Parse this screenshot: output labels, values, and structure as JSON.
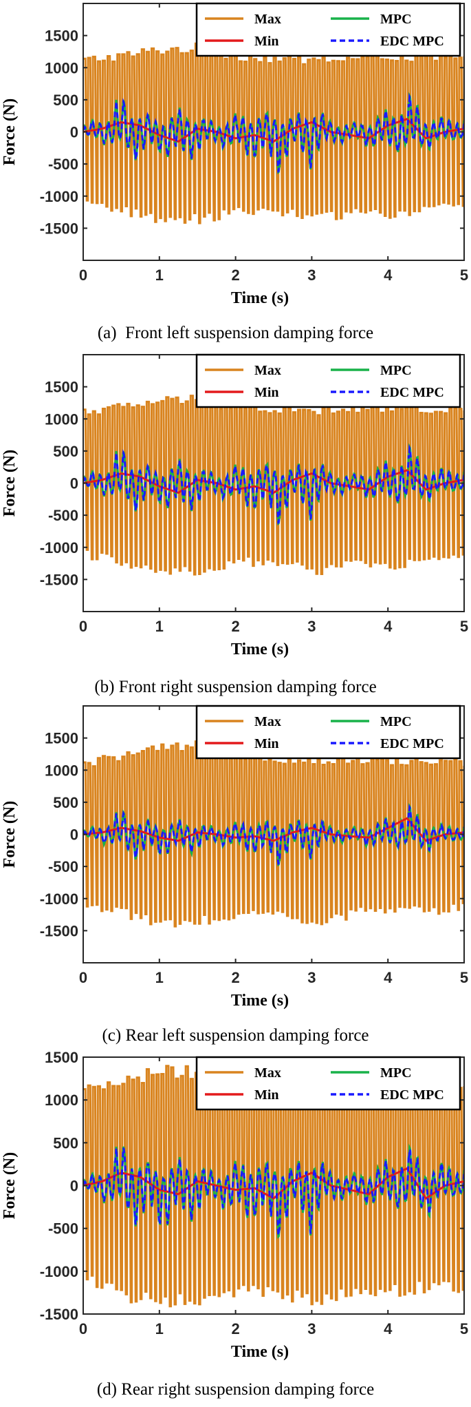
{
  "figure": {
    "captions": [
      "(a)  Front left suspension damping force",
      "(b) Front right suspension damping force",
      "(c) Rear left suspension damping force",
      "(d) Rear right suspension damping force"
    ]
  },
  "chart_data": [
    {
      "type": "line",
      "panel": "a",
      "caption": "(a)  Front left suspension damping force",
      "xlabel": "Time (s)",
      "ylabel": "Force (N)",
      "xlim": [
        0,
        5
      ],
      "ylim": [
        -2000,
        2000
      ],
      "xticks": [
        0,
        1,
        2,
        3,
        4,
        5
      ],
      "yticks": [
        -1500,
        -1000,
        -500,
        0,
        500,
        1000,
        1500
      ],
      "grid": false,
      "legend_position": "top-right",
      "legend": [
        "Max",
        "Min",
        "MPC",
        "EDC MPC"
      ],
      "colors": {
        "Max": "#d9841f",
        "Min": "#e31a1c",
        "MPC": "#19b24a",
        "EDC MPC": "#1a1aff"
      },
      "series": [
        {
          "name": "Max",
          "style": "solid",
          "description_x": [
            0,
            0.5,
            1,
            1.5,
            2,
            2.5,
            3,
            3.5,
            4,
            4.5,
            5
          ],
          "envelope_upper": [
            1180,
            1250,
            1350,
            1380,
            1250,
            1200,
            1180,
            1200,
            1250,
            1220,
            1200
          ],
          "envelope_lower": [
            -1180,
            -1300,
            -1450,
            -1420,
            -1300,
            -1280,
            -1450,
            -1300,
            -1350,
            -1250,
            -1200
          ]
        },
        {
          "name": "Min",
          "style": "solid",
          "x": [
            0,
            0.25,
            0.5,
            0.75,
            1,
            1.25,
            1.5,
            1.75,
            2,
            2.25,
            2.5,
            2.75,
            3,
            3.25,
            3.5,
            3.75,
            4,
            4.25,
            4.5,
            4.75,
            5
          ],
          "y": [
            0,
            50,
            150,
            100,
            -50,
            -150,
            50,
            0,
            -100,
            -50,
            -150,
            50,
            150,
            0,
            -50,
            -100,
            100,
            200,
            -100,
            0,
            50
          ]
        },
        {
          "name": "MPC",
          "style": "solid",
          "envelope_upper": [
            100,
            300,
            650,
            400,
            200,
            400,
            300,
            150,
            300,
            350,
            300,
            250,
            500,
            200,
            150,
            200,
            400,
            700,
            300,
            250,
            450
          ],
          "envelope_lower": [
            -100,
            -200,
            -300,
            -500,
            -400,
            -600,
            -400,
            -200,
            -400,
            -500,
            -800,
            -400,
            -600,
            -200,
            -200,
            -250,
            -400,
            -300,
            -300,
            -200,
            -100
          ]
        },
        {
          "name": "EDC MPC",
          "style": "dashed",
          "envelope_upper": [
            80,
            280,
            620,
            380,
            180,
            380,
            280,
            130,
            280,
            330,
            280,
            230,
            480,
            180,
            130,
            180,
            380,
            680,
            280,
            230,
            430
          ],
          "envelope_lower": [
            -80,
            -180,
            -280,
            -480,
            -380,
            -580,
            -380,
            -180,
            -380,
            -480,
            -780,
            -380,
            -580,
            -180,
            -180,
            -230,
            -380,
            -280,
            -280,
            -180,
            -80
          ]
        }
      ]
    },
    {
      "type": "line",
      "panel": "b",
      "caption": "(b) Front right suspension damping force",
      "xlabel": "Time (s)",
      "ylabel": "Force (N)",
      "xlim": [
        0,
        5
      ],
      "ylim": [
        -2000,
        2000
      ],
      "xticks": [
        0,
        1,
        2,
        3,
        4,
        5
      ],
      "yticks": [
        -1500,
        -1000,
        -500,
        0,
        500,
        1000,
        1500
      ],
      "grid": false,
      "legend_position": "top-right",
      "legend": [
        "Max",
        "Min",
        "MPC",
        "EDC MPC"
      ],
      "colors": {
        "Max": "#d9841f",
        "Min": "#e31a1c",
        "MPC": "#19b24a",
        "EDC MPC": "#1a1aff"
      },
      "series": [
        {
          "name": "Max",
          "style": "solid",
          "envelope_upper": [
            1180,
            1250,
            1350,
            1380,
            1250,
            1200,
            1180,
            1200,
            1250,
            1220,
            1200
          ],
          "envelope_lower": [
            -1180,
            -1300,
            -1450,
            -1420,
            -1300,
            -1280,
            -1450,
            -1300,
            -1350,
            -1250,
            -1200
          ]
        },
        {
          "name": "Min",
          "style": "solid",
          "x": [
            0,
            0.25,
            0.5,
            0.75,
            1,
            1.25,
            1.5,
            1.75,
            2,
            2.25,
            2.5,
            2.75,
            3,
            3.25,
            3.5,
            3.75,
            4,
            4.25,
            4.5,
            4.75,
            5
          ],
          "y": [
            0,
            50,
            150,
            100,
            -50,
            -150,
            50,
            0,
            -100,
            -50,
            -150,
            50,
            150,
            0,
            -50,
            -100,
            100,
            200,
            -100,
            0,
            50
          ]
        },
        {
          "name": "MPC",
          "style": "solid",
          "envelope_upper": [
            100,
            300,
            650,
            400,
            200,
            400,
            300,
            150,
            300,
            350,
            300,
            250,
            500,
            200,
            150,
            200,
            400,
            700,
            300,
            250,
            450
          ],
          "envelope_lower": [
            -100,
            -200,
            -300,
            -500,
            -400,
            -600,
            -400,
            -200,
            -400,
            -500,
            -800,
            -400,
            -600,
            -200,
            -200,
            -250,
            -400,
            -300,
            -300,
            -200,
            -100
          ]
        },
        {
          "name": "EDC MPC",
          "style": "dashed",
          "envelope_upper": [
            80,
            280,
            620,
            380,
            180,
            380,
            280,
            130,
            280,
            330,
            280,
            230,
            480,
            180,
            130,
            180,
            380,
            680,
            280,
            230,
            430
          ],
          "envelope_lower": [
            -80,
            -180,
            -280,
            -480,
            -380,
            -580,
            -380,
            -180,
            -380,
            -480,
            -780,
            -380,
            -580,
            -180,
            -180,
            -230,
            -380,
            -280,
            -280,
            -180,
            -80
          ]
        }
      ]
    },
    {
      "type": "line",
      "panel": "c",
      "caption": "(c) Rear left suspension damping force",
      "xlabel": "Time (s)",
      "ylabel": "Force (N)",
      "xlim": [
        0,
        5
      ],
      "ylim": [
        -2000,
        2000
      ],
      "xticks": [
        0,
        1,
        2,
        3,
        4,
        5
      ],
      "yticks": [
        -1500,
        -1000,
        -500,
        0,
        500,
        1000,
        1500
      ],
      "grid": false,
      "legend_position": "top-right",
      "legend": [
        "Max",
        "Min",
        "MPC",
        "EDC MPC"
      ],
      "colors": {
        "Max": "#d9841f",
        "Min": "#e31a1c",
        "MPC": "#19b24a",
        "EDC MPC": "#1a1aff"
      },
      "series": [
        {
          "name": "Max",
          "style": "solid",
          "envelope_upper": [
            1150,
            1300,
            1400,
            1450,
            1350,
            1250,
            1200,
            1250,
            1200,
            1200,
            1180
          ],
          "envelope_lower": [
            -1150,
            -1300,
            -1450,
            -1400,
            -1350,
            -1300,
            -1450,
            -1300,
            -1200,
            -1250,
            -1200
          ]
        },
        {
          "name": "Min",
          "style": "solid",
          "x": [
            0,
            0.25,
            0.5,
            0.75,
            1,
            1.25,
            1.5,
            1.75,
            2,
            2.25,
            2.5,
            2.75,
            3,
            3.25,
            3.5,
            3.75,
            4,
            4.25,
            4.5,
            4.75,
            5
          ],
          "y": [
            0,
            30,
            100,
            50,
            -50,
            -100,
            30,
            0,
            -50,
            -30,
            -100,
            30,
            100,
            0,
            -30,
            -50,
            100,
            250,
            -100,
            0,
            30
          ]
        },
        {
          "name": "MPC",
          "style": "solid",
          "envelope_upper": [
            60,
            200,
            450,
            300,
            150,
            250,
            200,
            120,
            200,
            250,
            200,
            200,
            350,
            150,
            120,
            150,
            300,
            550,
            200,
            150,
            300
          ],
          "envelope_lower": [
            -60,
            -150,
            -250,
            -450,
            -400,
            -350,
            -300,
            -150,
            -300,
            -350,
            -600,
            -300,
            -400,
            -150,
            -150,
            -200,
            -250,
            -200,
            -300,
            -150,
            -100
          ]
        },
        {
          "name": "EDC MPC",
          "style": "dashed",
          "envelope_upper": [
            40,
            180,
            430,
            280,
            130,
            230,
            180,
            100,
            180,
            230,
            180,
            180,
            330,
            130,
            100,
            130,
            280,
            530,
            180,
            130,
            280
          ],
          "envelope_lower": [
            -40,
            -130,
            -230,
            -430,
            -380,
            -330,
            -280,
            -130,
            -280,
            -330,
            -580,
            -280,
            -380,
            -130,
            -130,
            -180,
            -230,
            -180,
            -280,
            -130,
            -80
          ]
        }
      ]
    },
    {
      "type": "line",
      "panel": "d",
      "caption": "(d) Rear right suspension damping force",
      "xlabel": "Time (s)",
      "ylabel": "Force (N)",
      "xlim": [
        0,
        5
      ],
      "ylim": [
        -1500,
        1500
      ],
      "xticks": [
        0,
        1,
        2,
        3,
        4,
        5
      ],
      "yticks": [
        -1500,
        -1000,
        -500,
        0,
        500,
        1000,
        1500
      ],
      "grid": false,
      "legend_position": "top-right",
      "legend": [
        "Max",
        "Min",
        "MPC",
        "EDC MPC"
      ],
      "colors": {
        "Max": "#d9841f",
        "Min": "#e31a1c",
        "MPC": "#19b24a",
        "EDC MPC": "#1a1aff"
      },
      "series": [
        {
          "name": "Max",
          "style": "solid",
          "envelope_upper": [
            1150,
            1300,
            1400,
            1400,
            1300,
            1250,
            1200,
            1200,
            1250,
            1200,
            1180
          ],
          "envelope_lower": [
            -1150,
            -1350,
            -1450,
            -1400,
            -1300,
            -1300,
            -1450,
            -1300,
            -1300,
            -1250,
            -1250
          ]
        },
        {
          "name": "Min",
          "style": "solid",
          "x": [
            0,
            0.25,
            0.5,
            0.75,
            1,
            1.25,
            1.5,
            1.75,
            2,
            2.25,
            2.5,
            2.75,
            3,
            3.25,
            3.5,
            3.75,
            4,
            4.25,
            4.5,
            4.75,
            5
          ],
          "y": [
            0,
            50,
            150,
            100,
            -50,
            -100,
            50,
            0,
            -50,
            -30,
            -150,
            50,
            150,
            0,
            -50,
            -100,
            100,
            200,
            -150,
            0,
            50
          ]
        },
        {
          "name": "MPC",
          "style": "solid",
          "envelope_upper": [
            60,
            250,
            600,
            400,
            200,
            350,
            300,
            150,
            300,
            350,
            250,
            250,
            450,
            200,
            150,
            200,
            350,
            550,
            250,
            300,
            450
          ],
          "envelope_lower": [
            -60,
            -200,
            -300,
            -550,
            -600,
            -550,
            -400,
            -200,
            -500,
            -450,
            -750,
            -400,
            -600,
            -200,
            -200,
            -250,
            -300,
            -300,
            -400,
            -200,
            -100
          ]
        },
        {
          "name": "EDC MPC",
          "style": "dashed",
          "envelope_upper": [
            40,
            230,
            580,
            380,
            180,
            330,
            280,
            130,
            280,
            330,
            230,
            230,
            430,
            180,
            130,
            180,
            330,
            530,
            230,
            280,
            430
          ],
          "envelope_lower": [
            -40,
            -180,
            -280,
            -530,
            -580,
            -530,
            -380,
            -180,
            -480,
            -430,
            -730,
            -380,
            -580,
            -180,
            -180,
            -230,
            -280,
            -280,
            -380,
            -180,
            -80
          ]
        }
      ]
    }
  ]
}
